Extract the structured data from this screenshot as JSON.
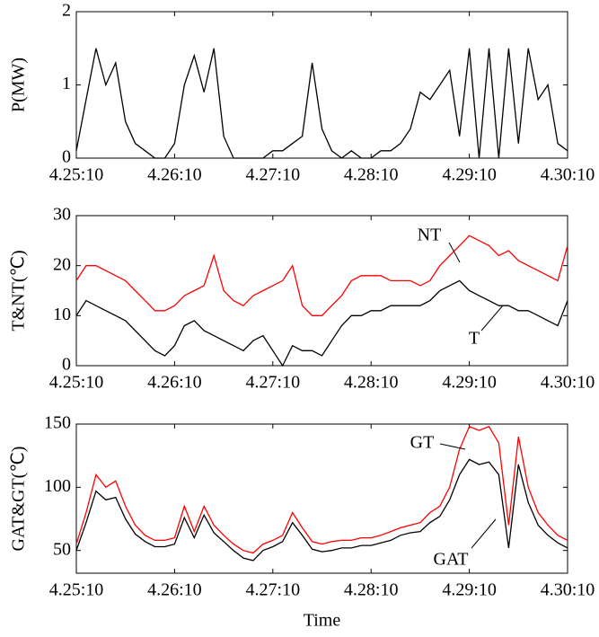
{
  "chart_data": [
    {
      "type": "line",
      "ylabel": "P(MW)",
      "x": [
        0,
        0.1,
        0.2,
        0.3,
        0.4,
        0.5,
        0.6,
        0.7,
        0.8,
        0.9,
        1,
        1.1,
        1.2,
        1.3,
        1.4,
        1.5,
        1.6,
        1.7,
        1.8,
        1.9,
        2,
        2.1,
        2.2,
        2.3,
        2.4,
        2.5,
        2.6,
        2.7,
        2.8,
        2.9,
        3,
        3.1,
        3.2,
        3.3,
        3.4,
        3.5,
        3.6,
        3.7,
        3.8,
        3.9,
        4,
        4.1,
        4.2,
        4.3,
        4.4,
        4.5,
        4.6,
        4.7,
        4.8,
        4.9,
        5
      ],
      "xlim": [
        0,
        5
      ],
      "xticks": [
        {
          "value": 0,
          "label": "4.25:10"
        },
        {
          "value": 1,
          "label": "4.26:10"
        },
        {
          "value": 2,
          "label": "4.27:10"
        },
        {
          "value": 3,
          "label": "4.28:10"
        },
        {
          "value": 4,
          "label": "4.29:10"
        },
        {
          "value": 5,
          "label": "4.30:10"
        }
      ],
      "ylim": [
        0,
        2
      ],
      "yticks": [
        0,
        1,
        2
      ],
      "series": [
        {
          "color": "#000000",
          "values": [
            0.1,
            0.8,
            1.5,
            1.0,
            1.3,
            0.5,
            0.2,
            0.1,
            0.0,
            0.0,
            0.2,
            1.0,
            1.4,
            0.9,
            1.5,
            0.3,
            0.0,
            0.0,
            0.0,
            0.0,
            0.1,
            0.1,
            0.2,
            0.3,
            1.3,
            0.4,
            0.1,
            0.0,
            0.1,
            0.0,
            0.0,
            0.1,
            0.1,
            0.2,
            0.4,
            0.9,
            0.8,
            1.0,
            1.2,
            0.3,
            1.5,
            0.0,
            1.5,
            0.0,
            1.5,
            0.2,
            1.5,
            0.8,
            1.0,
            0.2,
            0.1
          ]
        }
      ]
    },
    {
      "type": "line",
      "ylabel": "T&NT(℃)",
      "x": [
        0,
        0.1,
        0.2,
        0.3,
        0.4,
        0.5,
        0.6,
        0.7,
        0.8,
        0.9,
        1,
        1.1,
        1.2,
        1.3,
        1.4,
        1.5,
        1.6,
        1.7,
        1.8,
        1.9,
        2,
        2.1,
        2.2,
        2.3,
        2.4,
        2.5,
        2.6,
        2.7,
        2.8,
        2.9,
        3,
        3.1,
        3.2,
        3.3,
        3.4,
        3.5,
        3.6,
        3.7,
        3.8,
        3.9,
        4,
        4.1,
        4.2,
        4.3,
        4.4,
        4.5,
        4.6,
        4.7,
        4.8,
        4.9,
        5
      ],
      "xlim": [
        0,
        5
      ],
      "xticks": [
        {
          "value": 0,
          "label": "4.25:10"
        },
        {
          "value": 1,
          "label": "4.26:10"
        },
        {
          "value": 2,
          "label": "4.27:10"
        },
        {
          "value": 3,
          "label": "4.28:10"
        },
        {
          "value": 4,
          "label": "4.29:10"
        },
        {
          "value": 5,
          "label": "4.30:10"
        }
      ],
      "ylim": [
        0,
        30
      ],
      "yticks": [
        0,
        10,
        20,
        30
      ],
      "series": [
        {
          "name": "NT",
          "color": "#ff0000",
          "values": [
            17,
            20,
            20,
            19,
            18,
            17,
            15,
            13,
            11,
            11,
            12,
            14,
            15,
            16,
            22,
            15,
            13,
            12,
            14,
            15,
            16,
            17,
            20,
            12,
            10,
            10,
            12,
            14,
            17,
            18,
            18,
            18,
            17,
            17,
            17,
            16,
            17,
            20,
            22,
            24,
            26,
            25,
            24,
            22,
            23,
            21,
            20,
            19,
            18,
            17,
            24
          ]
        },
        {
          "name": "T",
          "color": "#000000",
          "values": [
            10,
            13,
            12,
            11,
            10,
            9,
            7,
            5,
            3,
            2,
            4,
            8,
            9,
            7,
            6,
            5,
            4,
            3,
            5,
            6,
            3,
            0,
            4,
            3,
            3,
            2,
            5,
            8,
            10,
            10,
            11,
            11,
            12,
            12,
            12,
            12,
            13,
            15,
            16,
            17,
            15,
            14,
            13,
            12,
            12,
            11,
            11,
            10,
            9,
            8,
            13
          ]
        }
      ]
    },
    {
      "type": "line",
      "ylabel": "GAT&GT(℃)",
      "xlabel": "Time",
      "x": [
        0,
        0.1,
        0.2,
        0.3,
        0.4,
        0.5,
        0.6,
        0.7,
        0.8,
        0.9,
        1,
        1.1,
        1.2,
        1.3,
        1.4,
        1.5,
        1.6,
        1.7,
        1.8,
        1.9,
        2,
        2.1,
        2.2,
        2.3,
        2.4,
        2.5,
        2.6,
        2.7,
        2.8,
        2.9,
        3,
        3.1,
        3.2,
        3.3,
        3.4,
        3.5,
        3.6,
        3.7,
        3.8,
        3.9,
        4,
        4.1,
        4.2,
        4.3,
        4.4,
        4.5,
        4.6,
        4.7,
        4.8,
        4.9,
        5
      ],
      "xlim": [
        0,
        5
      ],
      "xticks": [
        {
          "value": 0,
          "label": "4.25:10"
        },
        {
          "value": 1,
          "label": "4.26:10"
        },
        {
          "value": 2,
          "label": "4.27:10"
        },
        {
          "value": 3,
          "label": "4.28:10"
        },
        {
          "value": 4,
          "label": "4.29:10"
        },
        {
          "value": 5,
          "label": "4.30:10"
        }
      ],
      "ylim": [
        32,
        150
      ],
      "yticks": [
        50,
        100,
        150
      ],
      "series": [
        {
          "name": "GT",
          "color": "#ff0000",
          "values": [
            55,
            80,
            110,
            100,
            105,
            85,
            70,
            62,
            58,
            58,
            60,
            85,
            65,
            85,
            70,
            62,
            55,
            50,
            48,
            55,
            58,
            62,
            80,
            68,
            57,
            55,
            57,
            58,
            58,
            60,
            60,
            62,
            65,
            68,
            70,
            72,
            80,
            85,
            100,
            130,
            148,
            145,
            148,
            135,
            70,
            140,
            100,
            80,
            70,
            62,
            58
          ]
        },
        {
          "name": "GAT",
          "color": "#000000",
          "values": [
            50,
            72,
            97,
            90,
            92,
            75,
            63,
            57,
            53,
            53,
            55,
            76,
            60,
            78,
            64,
            57,
            50,
            44,
            42,
            50,
            53,
            57,
            72,
            62,
            51,
            49,
            50,
            52,
            52,
            54,
            54,
            56,
            58,
            62,
            64,
            65,
            72,
            77,
            90,
            110,
            122,
            118,
            120,
            110,
            52,
            118,
            88,
            70,
            62,
            56,
            52
          ]
        }
      ]
    }
  ]
}
